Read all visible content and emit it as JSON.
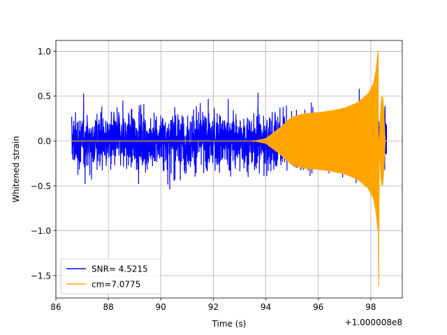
{
  "chart_data": {
    "type": "line",
    "xlabel": "Time (s)",
    "ylabel": "Whitened strain",
    "x_offset_label": "+1.000008e8",
    "xlim": [
      86.0,
      99.2
    ],
    "ylim": [
      -1.75,
      1.12
    ],
    "x_ticks": [
      {
        "value": 86,
        "label": "86"
      },
      {
        "value": 88,
        "label": "88"
      },
      {
        "value": 90,
        "label": "90"
      },
      {
        "value": 92,
        "label": "92"
      },
      {
        "value": 94,
        "label": "94"
      },
      {
        "value": 96,
        "label": "96"
      },
      {
        "value": 98,
        "label": "98"
      }
    ],
    "y_ticks": [
      {
        "value": -1.5,
        "label": "−1.5"
      },
      {
        "value": -1.0,
        "label": "−1.0"
      },
      {
        "value": -0.5,
        "label": "−0.5"
      },
      {
        "value": 0.0,
        "label": "0.0"
      },
      {
        "value": 0.5,
        "label": "0.5"
      },
      {
        "value": 1.0,
        "label": "1.0"
      }
    ],
    "grid": true,
    "legend_position": "bottom-left",
    "series": [
      {
        "name": "SNR= 4.5215",
        "color": "#0000ff",
        "style": "noise",
        "x_range": [
          86.6,
          98.6
        ],
        "envelope": {
          "typical": 0.5,
          "peak_max": 0.99,
          "peak_min": -0.98
        }
      },
      {
        "name": "cm=7.0775",
        "color": "#ffa500",
        "style": "chirp",
        "x_range": [
          86.6,
          98.6
        ],
        "envelope_points": [
          [
            86.6,
            0.0
          ],
          [
            93.5,
            0.0
          ],
          [
            94.0,
            0.03
          ],
          [
            94.5,
            0.14
          ],
          [
            95.0,
            0.27
          ],
          [
            95.5,
            0.31
          ],
          [
            96.0,
            0.32
          ],
          [
            96.5,
            0.34
          ],
          [
            97.0,
            0.37
          ],
          [
            97.5,
            0.43
          ],
          [
            97.9,
            0.53
          ],
          [
            98.1,
            0.64
          ],
          [
            98.2,
            0.8
          ],
          [
            98.27,
            1.0
          ]
        ],
        "peak": {
          "x": 98.28,
          "max": 1.0,
          "min": -1.62
        },
        "ringdown": [
          [
            98.32,
            0.0
          ],
          [
            98.45,
            0.5
          ],
          [
            98.55,
            0.0
          ]
        ]
      }
    ]
  }
}
